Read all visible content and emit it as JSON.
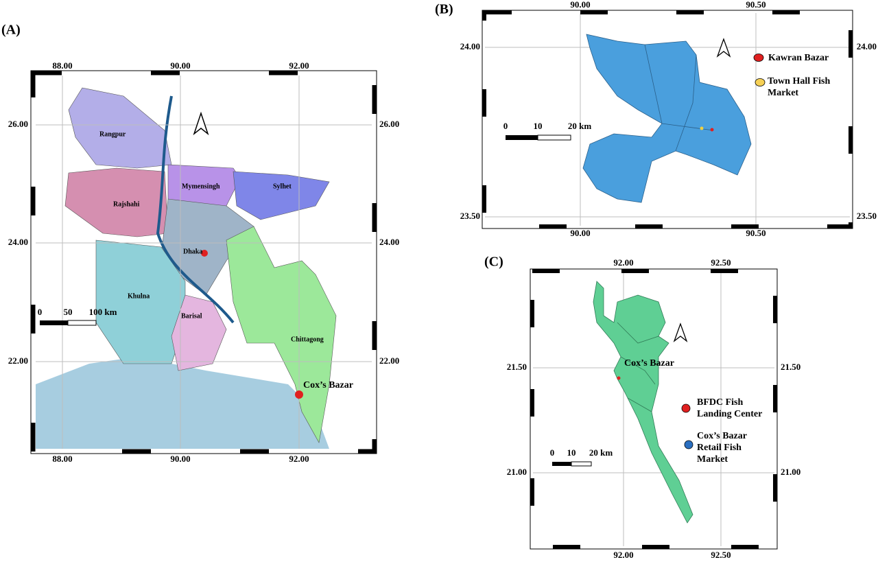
{
  "panels": [
    {
      "label": "(A)",
      "lon_ticks": [
        "88.00",
        "90.00",
        "92.00"
      ],
      "lat_ticks": [
        "26.00",
        "24.00",
        "22.00"
      ],
      "regions": [
        "Rangpur",
        "Mymensingh",
        "Sylhet",
        "Rajshahi",
        "Dhaka",
        "Khulna",
        "Barisal",
        "Chittagong"
      ],
      "place": "Cox’s Bazar",
      "scale": [
        "0",
        "50",
        "100 km"
      ]
    },
    {
      "label": "(B)",
      "lon_ticks": [
        "90.00",
        "90.50"
      ],
      "lat_ticks": [
        "24.00",
        "23.50"
      ],
      "scale": [
        "0",
        "10",
        "20 km"
      ],
      "legend": [
        "Kawran Bazar",
        "Town Hall Fish Market"
      ]
    },
    {
      "label": "(C)",
      "lon_ticks": [
        "92.00",
        "92.50"
      ],
      "lat_ticks": [
        "21.50",
        "21.00"
      ],
      "place": "Cox’s Bazar",
      "scale": [
        "0",
        "10",
        "20 km"
      ],
      "legend": [
        "BFDC Fish Landing Center",
        "Cox’s Bazar Retail Fish Market"
      ]
    }
  ]
}
